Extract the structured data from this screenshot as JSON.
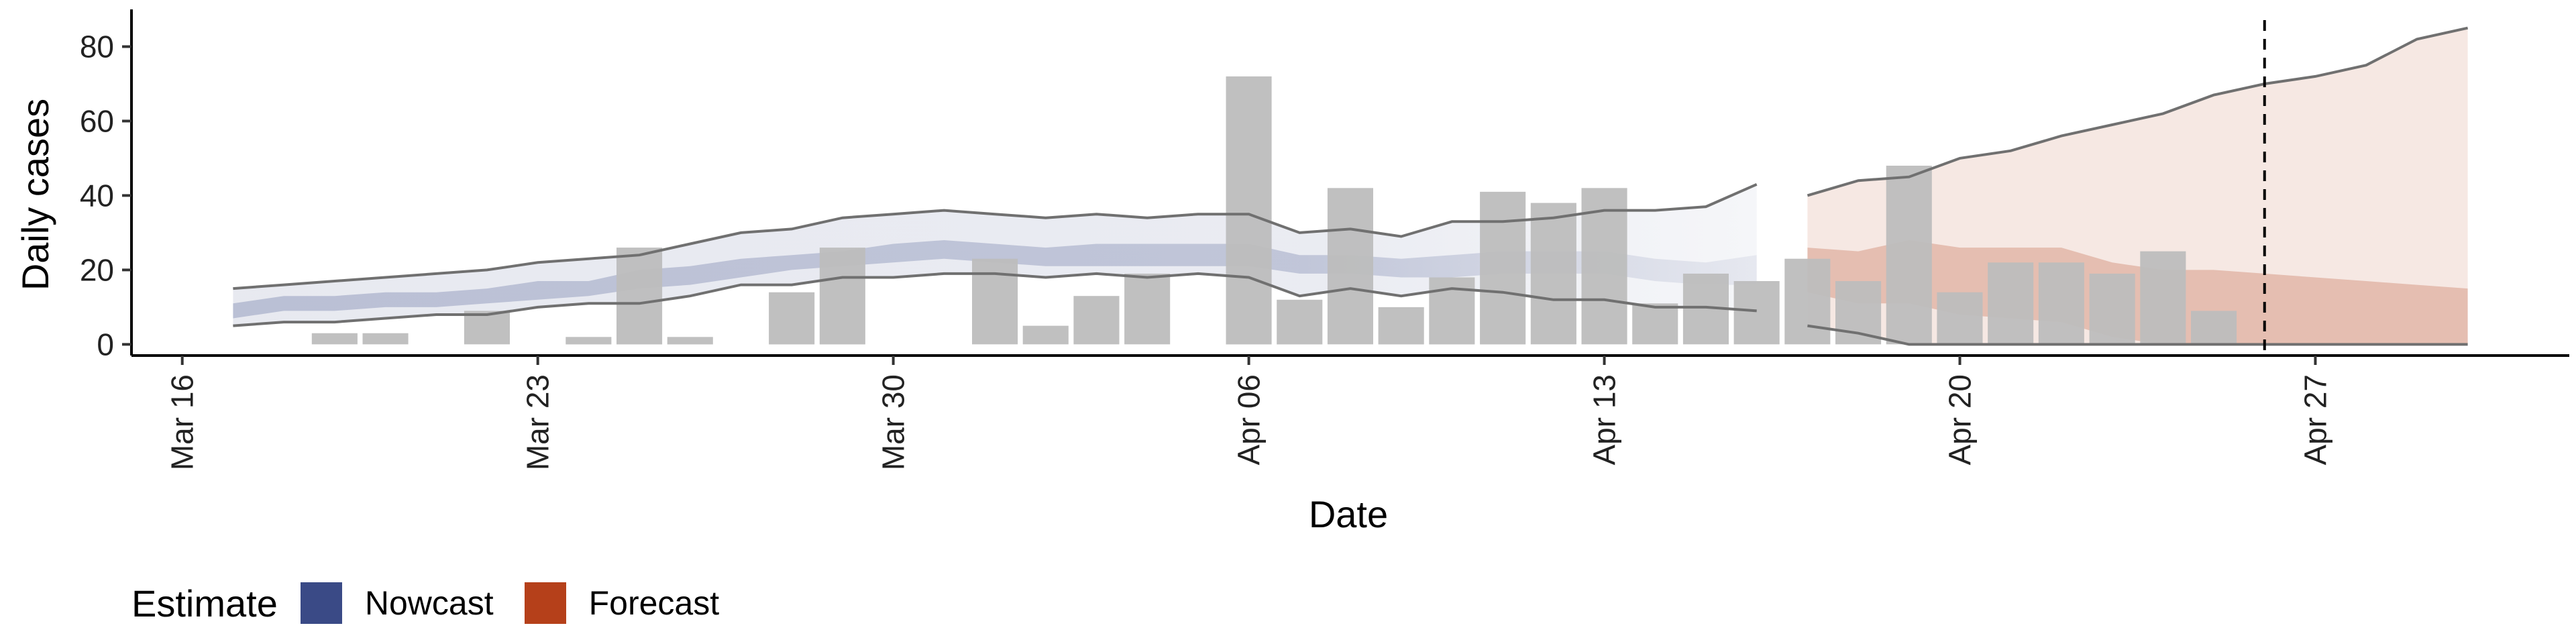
{
  "chart_data": {
    "type": "bar",
    "ylabel": "Daily cases",
    "xlabel": "Date",
    "ylim": [
      -3,
      90
    ],
    "x_range": [
      "2020-03-15",
      "2020-05-02"
    ],
    "y_ticks": [
      0,
      20,
      40,
      60,
      80
    ],
    "x_ticks": [
      {
        "date": "2020-03-16",
        "label": "Mar 16"
      },
      {
        "date": "2020-03-23",
        "label": "Mar 23"
      },
      {
        "date": "2020-03-30",
        "label": "Mar 30"
      },
      {
        "date": "2020-04-06",
        "label": "Apr 06"
      },
      {
        "date": "2020-04-13",
        "label": "Apr 13"
      },
      {
        "date": "2020-04-20",
        "label": "Apr 20"
      },
      {
        "date": "2020-04-27",
        "label": "Apr 27"
      }
    ],
    "bars": {
      "name": "Daily cases",
      "color": "#bdbdbd",
      "dates": [
        "2020-03-19",
        "2020-03-20",
        "2020-03-22",
        "2020-03-24",
        "2020-03-25",
        "2020-03-26",
        "2020-03-28",
        "2020-03-29",
        "2020-04-01",
        "2020-04-02",
        "2020-04-03",
        "2020-04-04",
        "2020-04-06",
        "2020-04-07",
        "2020-04-08",
        "2020-04-09",
        "2020-04-10",
        "2020-04-11",
        "2020-04-12",
        "2020-04-13",
        "2020-04-14",
        "2020-04-15",
        "2020-04-16",
        "2020-04-17",
        "2020-04-18",
        "2020-04-19",
        "2020-04-20",
        "2020-04-21",
        "2020-04-22",
        "2020-04-23",
        "2020-04-24",
        "2020-04-25"
      ],
      "values": [
        3,
        3,
        9,
        2,
        26,
        2,
        14,
        26,
        23,
        5,
        13,
        19,
        72,
        12,
        42,
        10,
        18,
        41,
        38,
        42,
        11,
        19,
        17,
        23,
        17,
        48,
        14,
        22,
        22,
        19,
        25,
        9
      ]
    },
    "nowcast": {
      "name": "Nowcast",
      "color": "#3a4a86",
      "dates": [
        "2020-03-17",
        "2020-03-18",
        "2020-03-19",
        "2020-03-20",
        "2020-03-21",
        "2020-03-22",
        "2020-03-23",
        "2020-03-24",
        "2020-03-25",
        "2020-03-26",
        "2020-03-27",
        "2020-03-28",
        "2020-03-29",
        "2020-03-30",
        "2020-03-31",
        "2020-04-01",
        "2020-04-02",
        "2020-04-03",
        "2020-04-04",
        "2020-04-05",
        "2020-04-06",
        "2020-04-07",
        "2020-04-08",
        "2020-04-09",
        "2020-04-10",
        "2020-04-11",
        "2020-04-12",
        "2020-04-13",
        "2020-04-14",
        "2020-04-15",
        "2020-04-16"
      ],
      "outer_lower": [
        5,
        6,
        6,
        7,
        8,
        8,
        10,
        11,
        11,
        13,
        16,
        16,
        18,
        18,
        19,
        19,
        18,
        19,
        18,
        19,
        18,
        13,
        15,
        13,
        15,
        14,
        12,
        12,
        10,
        10,
        9
      ],
      "outer_upper": [
        15,
        16,
        17,
        18,
        19,
        20,
        22,
        23,
        24,
        27,
        30,
        31,
        34,
        35,
        36,
        35,
        34,
        35,
        34,
        35,
        35,
        30,
        31,
        29,
        33,
        33,
        34,
        36,
        36,
        37,
        43
      ],
      "inner_lower": [
        7,
        9,
        9,
        10,
        10,
        11,
        12,
        13,
        15,
        16,
        18,
        20,
        21,
        22,
        23,
        22,
        21,
        21,
        21,
        21,
        21,
        19,
        19,
        18,
        18,
        19,
        19,
        19,
        17,
        16,
        16
      ],
      "inner_upper": [
        11,
        13,
        13,
        14,
        14,
        15,
        17,
        17,
        20,
        21,
        23,
        24,
        25,
        27,
        28,
        27,
        26,
        27,
        27,
        27,
        27,
        24,
        24,
        23,
        24,
        25,
        25,
        25,
        23,
        22,
        24
      ]
    },
    "forecast": {
      "name": "Forecast",
      "color": "#b5401a",
      "dates": [
        "2020-04-17",
        "2020-04-18",
        "2020-04-19",
        "2020-04-20",
        "2020-04-21",
        "2020-04-22",
        "2020-04-23",
        "2020-04-24",
        "2020-04-25",
        "2020-04-26",
        "2020-04-27",
        "2020-04-28",
        "2020-04-29",
        "2020-04-30"
      ],
      "outer_lower": [
        5,
        3,
        0,
        0,
        0,
        0,
        0,
        0,
        0,
        0,
        0,
        0,
        0,
        0
      ],
      "outer_upper": [
        40,
        44,
        45,
        50,
        52,
        56,
        59,
        62,
        67,
        70,
        72,
        75,
        82,
        85
      ],
      "inner_lower": [
        14,
        11,
        11,
        8,
        7,
        6,
        2,
        0,
        0,
        0,
        0,
        0,
        0,
        0
      ],
      "inner_upper": [
        26,
        25,
        28,
        26,
        26,
        26,
        22,
        20,
        20,
        19,
        18,
        17,
        16,
        15
      ]
    },
    "reference_line": {
      "date": "2020-04-26",
      "style": "dashed"
    },
    "legend": {
      "title": "Estimate",
      "position": "bottom-left",
      "entries": [
        "Nowcast",
        "Forecast"
      ]
    }
  }
}
